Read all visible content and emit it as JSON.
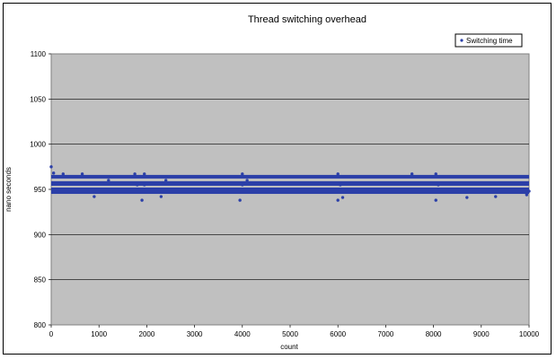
{
  "chart_data": {
    "type": "scatter",
    "title": "Thread switching overhead",
    "xlabel": "count",
    "ylabel": "nano seconds",
    "xlim": [
      0,
      10000
    ],
    "ylim": [
      800,
      1100
    ],
    "xticks": [
      0,
      1000,
      2000,
      3000,
      4000,
      5000,
      6000,
      7000,
      8000,
      9000,
      10000
    ],
    "yticks": [
      800,
      850,
      900,
      950,
      1000,
      1050,
      1100
    ],
    "grid": "horizontal",
    "legend_position": "top-right",
    "plot_background": "#c0c0c0",
    "series": [
      {
        "name": "Switching time",
        "color": "#2b3fa8",
        "bands": [
          {
            "x_from": 0,
            "x_to": 10000,
            "y_from": 962,
            "y_to": 966
          },
          {
            "x_from": 0,
            "x_to": 10000,
            "y_from": 954,
            "y_to": 959
          },
          {
            "x_from": 0,
            "x_to": 10000,
            "y_from": 945,
            "y_to": 952
          }
        ],
        "points": [
          {
            "x": 0,
            "y": 975
          },
          {
            "x": 50,
            "y": 968
          },
          {
            "x": 250,
            "y": 967
          },
          {
            "x": 650,
            "y": 967
          },
          {
            "x": 900,
            "y": 942
          },
          {
            "x": 1200,
            "y": 960
          },
          {
            "x": 1750,
            "y": 967
          },
          {
            "x": 1800,
            "y": 955
          },
          {
            "x": 1900,
            "y": 938
          },
          {
            "x": 1950,
            "y": 967
          },
          {
            "x": 1950,
            "y": 955
          },
          {
            "x": 2300,
            "y": 942
          },
          {
            "x": 2400,
            "y": 960
          },
          {
            "x": 3950,
            "y": 938
          },
          {
            "x": 4000,
            "y": 967
          },
          {
            "x": 4000,
            "y": 955
          },
          {
            "x": 4100,
            "y": 960
          },
          {
            "x": 6000,
            "y": 938
          },
          {
            "x": 6000,
            "y": 967
          },
          {
            "x": 6050,
            "y": 955
          },
          {
            "x": 6100,
            "y": 941
          },
          {
            "x": 7550,
            "y": 967
          },
          {
            "x": 8050,
            "y": 938
          },
          {
            "x": 8050,
            "y": 967
          },
          {
            "x": 8100,
            "y": 955
          },
          {
            "x": 8700,
            "y": 941
          },
          {
            "x": 9300,
            "y": 942
          },
          {
            "x": 9950,
            "y": 944
          },
          {
            "x": 10000,
            "y": 948
          }
        ]
      }
    ]
  }
}
